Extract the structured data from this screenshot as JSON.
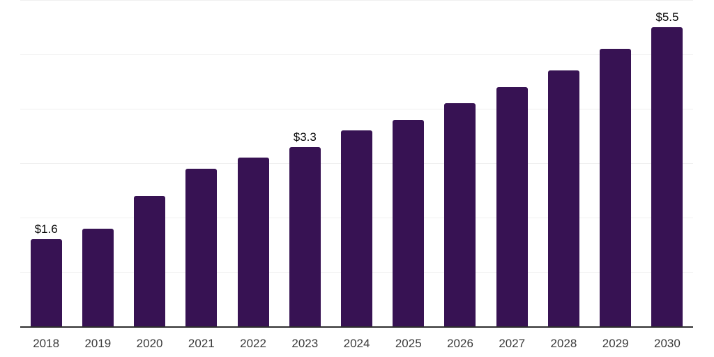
{
  "chart_data": {
    "type": "bar",
    "title": "",
    "xlabel": "",
    "ylabel": "",
    "categories": [
      "2018",
      "2019",
      "2020",
      "2021",
      "2022",
      "2023",
      "2024",
      "2025",
      "2026",
      "2027",
      "2028",
      "2029",
      "2030"
    ],
    "values": [
      1.6,
      1.8,
      2.4,
      2.9,
      3.1,
      3.3,
      3.6,
      3.8,
      4.1,
      4.4,
      4.7,
      5.1,
      5.5
    ],
    "bar_labels": [
      "$1.6",
      "",
      "",
      "",
      "",
      "$3.3",
      "",
      "",
      "",
      "",
      "",
      "",
      "$5.5"
    ],
    "ylim": [
      0,
      6
    ],
    "gridline_step": 1,
    "grid": "horizontal",
    "y_tick_labels": "none",
    "legend": "none"
  },
  "colors": {
    "background": "#ffffff",
    "bar": "#371253",
    "gridline": "#f0f0f0",
    "axis_line": "#2e2e2e",
    "tick_label": "#3b3b3b",
    "value_label": "#0a0a0a"
  }
}
